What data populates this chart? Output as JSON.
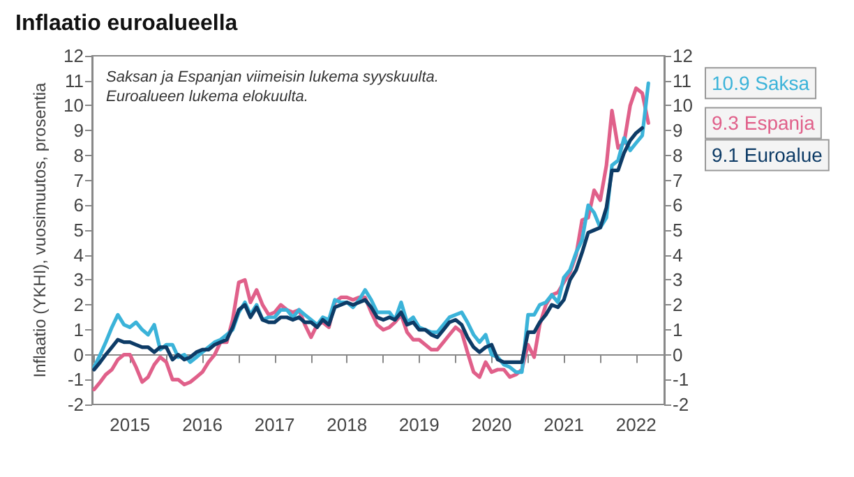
{
  "chart_data": {
    "type": "line",
    "title": "Inflaatio euroalueella",
    "ylabel": "Inflaatio (YKHI), vuosimuutos, prosentia",
    "annotations": [
      "Saksan ja Espanjan viimeisin lukema syyskuulta.",
      "Euroalueen lukema elokuulta."
    ],
    "x": [
      "2015-01",
      "2015-02",
      "2015-03",
      "2015-04",
      "2015-05",
      "2015-06",
      "2015-07",
      "2015-08",
      "2015-09",
      "2015-10",
      "2015-11",
      "2015-12",
      "2016-01",
      "2016-02",
      "2016-03",
      "2016-04",
      "2016-05",
      "2016-06",
      "2016-07",
      "2016-08",
      "2016-09",
      "2016-10",
      "2016-11",
      "2016-12",
      "2017-01",
      "2017-02",
      "2017-03",
      "2017-04",
      "2017-05",
      "2017-06",
      "2017-07",
      "2017-08",
      "2017-09",
      "2017-10",
      "2017-11",
      "2017-12",
      "2018-01",
      "2018-02",
      "2018-03",
      "2018-04",
      "2018-05",
      "2018-06",
      "2018-07",
      "2018-08",
      "2018-09",
      "2018-10",
      "2018-11",
      "2018-12",
      "2019-01",
      "2019-02",
      "2019-03",
      "2019-04",
      "2019-05",
      "2019-06",
      "2019-07",
      "2019-08",
      "2019-09",
      "2019-10",
      "2019-11",
      "2019-12",
      "2020-01",
      "2020-02",
      "2020-03",
      "2020-04",
      "2020-05",
      "2020-06",
      "2020-07",
      "2020-08",
      "2020-09",
      "2020-10",
      "2020-11",
      "2020-12",
      "2021-01",
      "2021-02",
      "2021-03",
      "2021-04",
      "2021-05",
      "2021-06",
      "2021-07",
      "2021-08",
      "2021-09",
      "2021-10",
      "2021-11",
      "2021-12",
      "2022-01",
      "2022-02",
      "2022-03",
      "2022-04",
      "2022-05",
      "2022-06",
      "2022-07",
      "2022-08",
      "2022-09"
    ],
    "series": [
      {
        "name": "Espanja",
        "color": "#e0608a",
        "values": [
          -1.4,
          -1.1,
          -0.8,
          -0.6,
          -0.2,
          0.0,
          0.0,
          -0.5,
          -1.1,
          -0.9,
          -0.4,
          -0.1,
          -0.3,
          -1.0,
          -1.0,
          -1.2,
          -1.1,
          -0.9,
          -0.7,
          -0.3,
          0.0,
          0.5,
          0.5,
          1.4,
          2.9,
          3.0,
          2.1,
          2.6,
          2.0,
          1.6,
          1.7,
          2.0,
          1.8,
          1.7,
          1.8,
          1.2,
          0.7,
          1.2,
          1.3,
          1.1,
          2.1,
          2.3,
          2.3,
          2.2,
          2.3,
          2.3,
          1.7,
          1.2,
          1.0,
          1.1,
          1.3,
          1.6,
          0.9,
          0.6,
          0.6,
          0.4,
          0.2,
          0.2,
          0.5,
          0.8,
          1.1,
          0.9,
          0.1,
          -0.7,
          -0.9,
          -0.3,
          -0.7,
          -0.6,
          -0.6,
          -0.9,
          -0.8,
          -0.6,
          0.4,
          -0.1,
          1.2,
          2.0,
          2.4,
          2.5,
          2.9,
          3.3,
          4.0,
          5.4,
          5.5,
          6.6,
          6.2,
          7.6,
          9.8,
          8.3,
          8.5,
          10.0,
          10.7,
          10.5,
          9.3
        ],
        "value_labels": [
          null,
          null,
          null,
          null,
          null,
          null,
          null,
          null,
          null,
          null,
          null,
          null,
          null,
          null,
          null,
          null,
          null,
          null,
          null,
          null,
          null,
          null,
          null,
          null,
          null,
          null,
          null,
          null,
          null,
          null,
          null,
          null,
          null,
          null,
          null,
          null,
          null,
          null,
          null,
          null,
          null,
          null,
          null,
          null,
          null,
          null,
          null,
          null,
          null,
          null,
          null,
          null,
          null,
          null,
          null,
          null,
          null,
          null,
          null,
          null,
          null,
          null,
          null,
          null,
          null,
          null,
          null,
          null,
          null,
          null,
          null,
          null,
          null,
          null,
          null,
          null,
          null,
          null,
          null,
          null,
          null,
          null,
          null,
          null,
          null,
          null,
          null,
          null,
          null,
          null,
          null,
          null,
          "9.3"
        ]
      },
      {
        "name": "Saksa",
        "color": "#3bb3d9",
        "values": [
          -0.5,
          0.0,
          0.5,
          1.1,
          1.6,
          1.2,
          1.1,
          1.3,
          1.0,
          0.8,
          1.2,
          0.2,
          0.4,
          0.4,
          -0.1,
          0.0,
          -0.3,
          -0.1,
          0.1,
          0.3,
          0.5,
          0.6,
          0.8,
          1.0,
          1.7,
          2.1,
          1.6,
          2.0,
          1.4,
          1.5,
          1.5,
          1.8,
          1.8,
          1.5,
          1.8,
          1.6,
          1.4,
          1.2,
          1.5,
          1.4,
          2.2,
          2.1,
          2.1,
          1.9,
          2.2,
          2.6,
          2.2,
          1.7,
          1.7,
          1.7,
          1.4,
          2.1,
          1.3,
          1.5,
          1.1,
          1.0,
          0.9,
          0.9,
          1.2,
          1.5,
          1.6,
          1.7,
          1.3,
          0.8,
          0.5,
          0.8,
          0.0,
          -0.1,
          -0.4,
          -0.5,
          -0.7,
          -0.7,
          1.6,
          1.6,
          2.0,
          2.1,
          2.4,
          2.1,
          3.1,
          3.4,
          4.1,
          4.6,
          6.0,
          5.7,
          5.1,
          5.5,
          7.6,
          7.8,
          8.7,
          8.2,
          8.5,
          8.8,
          10.9
        ],
        "value_labels": [
          null,
          null,
          null,
          null,
          null,
          null,
          null,
          null,
          null,
          null,
          null,
          null,
          null,
          null,
          null,
          null,
          null,
          null,
          null,
          null,
          null,
          null,
          null,
          null,
          null,
          null,
          null,
          null,
          null,
          null,
          null,
          null,
          null,
          null,
          null,
          null,
          null,
          null,
          null,
          null,
          null,
          null,
          null,
          null,
          null,
          null,
          null,
          null,
          null,
          null,
          null,
          null,
          null,
          null,
          null,
          null,
          null,
          null,
          null,
          null,
          null,
          null,
          null,
          null,
          null,
          null,
          null,
          null,
          null,
          null,
          null,
          null,
          null,
          null,
          null,
          null,
          null,
          null,
          null,
          null,
          null,
          null,
          null,
          null,
          null,
          null,
          null,
          null,
          null,
          null,
          null,
          null,
          "10.9"
        ]
      },
      {
        "name": "Euroalue",
        "color": "#0d3b66",
        "values": [
          -0.6,
          -0.3,
          0.0,
          0.3,
          0.6,
          0.5,
          0.5,
          0.4,
          0.3,
          0.3,
          0.1,
          0.3,
          0.3,
          -0.2,
          0.0,
          -0.2,
          -0.1,
          0.1,
          0.2,
          0.2,
          0.4,
          0.5,
          0.6,
          1.1,
          1.8,
          2.0,
          1.5,
          1.9,
          1.4,
          1.3,
          1.3,
          1.5,
          1.5,
          1.4,
          1.5,
          1.3,
          1.3,
          1.1,
          1.4,
          1.2,
          1.9,
          2.0,
          2.1,
          2.0,
          2.1,
          2.2,
          1.9,
          1.5,
          1.4,
          1.5,
          1.4,
          1.7,
          1.2,
          1.3,
          1.0,
          1.0,
          0.8,
          0.7,
          1.0,
          1.3,
          1.4,
          1.2,
          0.7,
          0.3,
          0.1,
          0.3,
          0.4,
          -0.2,
          -0.3,
          -0.3,
          -0.3,
          -0.3,
          0.9,
          0.9,
          1.3,
          1.6,
          2.0,
          1.9,
          2.2,
          3.0,
          3.4,
          4.1,
          4.9,
          5.0,
          5.1,
          5.9,
          7.4,
          7.4,
          8.1,
          8.6,
          8.9,
          9.1,
          null
        ],
        "value_labels": [
          null,
          null,
          null,
          null,
          null,
          null,
          null,
          null,
          null,
          null,
          null,
          null,
          null,
          null,
          null,
          null,
          null,
          null,
          null,
          null,
          null,
          null,
          null,
          null,
          null,
          null,
          null,
          null,
          null,
          null,
          null,
          null,
          null,
          null,
          null,
          null,
          null,
          null,
          null,
          null,
          null,
          null,
          null,
          null,
          null,
          null,
          null,
          null,
          null,
          null,
          null,
          null,
          null,
          null,
          null,
          null,
          null,
          null,
          null,
          null,
          null,
          null,
          null,
          null,
          null,
          null,
          null,
          null,
          null,
          null,
          null,
          null,
          null,
          null,
          null,
          null,
          null,
          null,
          null,
          null,
          null,
          null,
          null,
          null,
          null,
          null,
          null,
          null,
          null,
          null,
          null,
          "9.1",
          null
        ]
      }
    ],
    "xlim": [
      "2014-12-22",
      "2022-11-20"
    ],
    "xticks": [
      {
        "value": "2015-01-01",
        "label": null
      },
      {
        "value": "2015-07-01",
        "label": "2015"
      },
      {
        "value": "2016-01-01",
        "label": null
      },
      {
        "value": "2016-07-01",
        "label": "2016"
      },
      {
        "value": "2017-01-01",
        "label": null
      },
      {
        "value": "2017-07-01",
        "label": "2017"
      },
      {
        "value": "2018-01-01",
        "label": null
      },
      {
        "value": "2018-07-01",
        "label": "2018"
      },
      {
        "value": "2019-01-01",
        "label": null
      },
      {
        "value": "2019-07-01",
        "label": "2019"
      },
      {
        "value": "2020-01-01",
        "label": null
      },
      {
        "value": "2020-07-01",
        "label": "2020"
      },
      {
        "value": "2021-01-01",
        "label": null
      },
      {
        "value": "2021-07-01",
        "label": "2021"
      },
      {
        "value": "2022-01-01",
        "label": null
      },
      {
        "value": "2022-07-01",
        "label": "2022"
      }
    ],
    "ylim": [
      -2,
      12
    ],
    "yticks": [
      -2,
      -1,
      0,
      1,
      2,
      3,
      4,
      5,
      6,
      7,
      8,
      9,
      10,
      11,
      12
    ],
    "y2lim": [
      -2,
      12
    ],
    "y2ticks": [
      -2,
      -1,
      0,
      1,
      2,
      3,
      4,
      5,
      6,
      7,
      8,
      9,
      10,
      11,
      12
    ],
    "marker": "none",
    "line_style": "solid"
  }
}
